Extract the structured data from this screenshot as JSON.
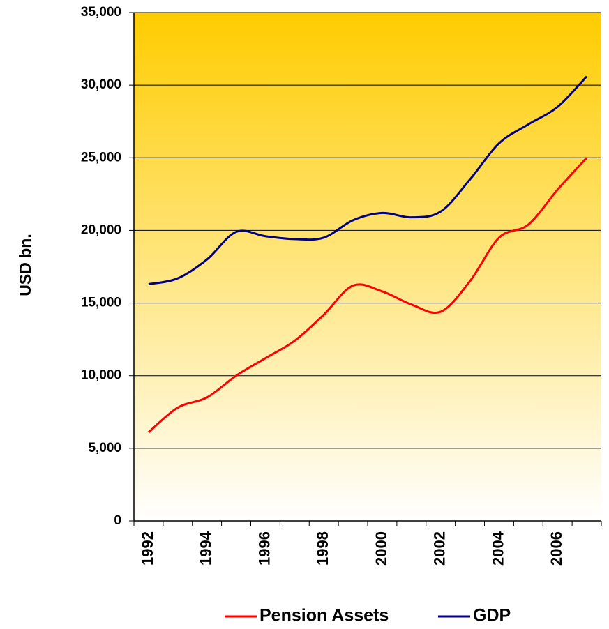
{
  "chart_data": {
    "type": "line",
    "y_label": "USD bn.",
    "categories": [
      "1992",
      null,
      "1994",
      null,
      "1996",
      null,
      "1998",
      null,
      "2000",
      null,
      "2002",
      null,
      "2004",
      null,
      "2006",
      null
    ],
    "series": [
      {
        "name": "Pension Assets",
        "color": "#ff0000",
        "values": [
          6100,
          7800,
          8500,
          10000,
          11200,
          12400,
          14200,
          16200,
          15800,
          14900,
          14400,
          16500,
          19500,
          20400,
          22800,
          25000
        ]
      },
      {
        "name": "GDP",
        "color": "#000080",
        "values": [
          16300,
          16700,
          18000,
          19900,
          19600,
          19400,
          19500,
          20700,
          21200,
          20900,
          21300,
          23500,
          26000,
          27300,
          28500,
          30600
        ]
      }
    ],
    "ylim": [
      0,
      35000
    ],
    "yticks": [
      0,
      {
        "value": 5000,
        "label": "5,000"
      },
      {
        "value": 10000,
        "label": "10,000"
      },
      {
        "value": 15000,
        "label": "15,000"
      },
      {
        "value": 20000,
        "label": "20,000"
      },
      {
        "value": 25000,
        "label": "25,000"
      },
      {
        "value": 30000,
        "label": "30,000"
      },
      {
        "value": 35000,
        "label": "35,000"
      }
    ],
    "grid": true,
    "legend": "bottom"
  }
}
